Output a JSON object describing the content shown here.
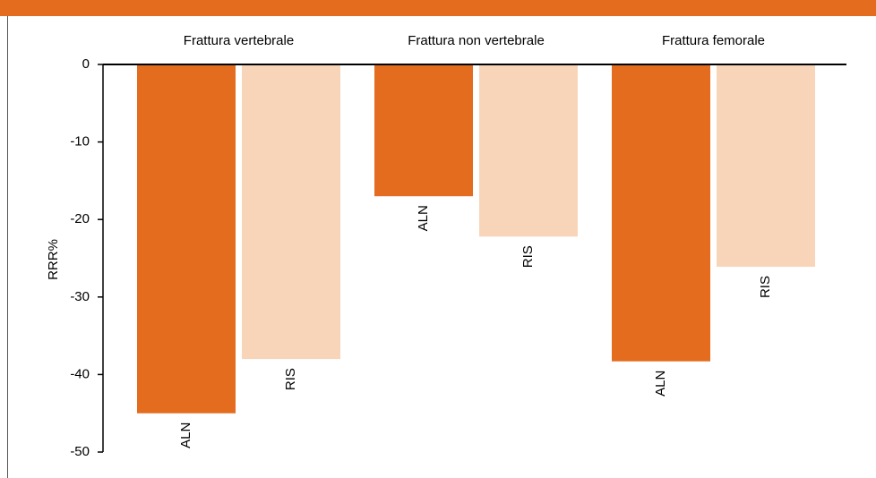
{
  "chart_data": {
    "type": "bar",
    "y_label": "RRR%",
    "categories": [
      "Frattura vertebrale",
      "Frattura non vertebrale",
      "Frattura femorale"
    ],
    "series": [
      {
        "name": "ALN",
        "color": "#e36c1e",
        "values": [
          -45,
          -17,
          -38.3
        ]
      },
      {
        "name": "RIS",
        "color": "#f8d5b8",
        "values": [
          -38,
          -22.2,
          -26.1
        ]
      }
    ],
    "ylim": [
      -50,
      0
    ],
    "yticks": [
      0,
      -10,
      -20,
      -30,
      -40,
      -50
    ]
  }
}
